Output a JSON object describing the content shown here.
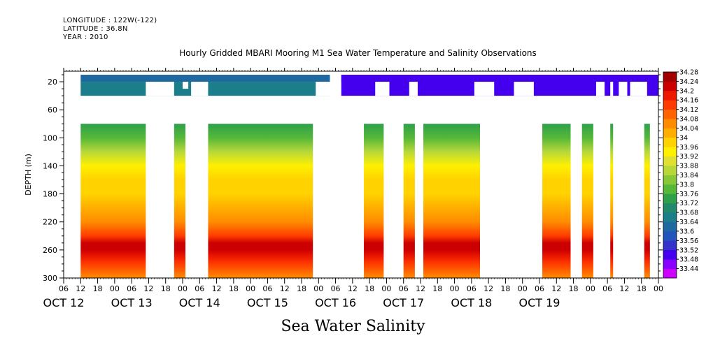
{
  "header": {
    "longitude": "LONGITUDE : 122W(-122)",
    "latitude": "LATITUDE : 36.8N",
    "year": "YEAR : 2010"
  },
  "chart_data": {
    "type": "heatmap",
    "title": "Hourly Gridded MBARI Mooring M1 Sea Water Temperature and Salinity Observations",
    "subtitle": "Sea Water Salinity",
    "ylabel": "DEPTH (m)",
    "xlabel": "",
    "ylim": [
      300,
      0
    ],
    "y_ticks": [
      20,
      60,
      100,
      140,
      180,
      220,
      260,
      300
    ],
    "x_range_hours": [
      0,
      210
    ],
    "x_hour_labels": [
      "06",
      "12",
      "18",
      "00",
      "06",
      "12",
      "18",
      "00",
      "06",
      "12",
      "18",
      "00",
      "06",
      "12",
      "18",
      "00",
      "06",
      "12",
      "18",
      "00",
      "06",
      "12",
      "18",
      "00",
      "06",
      "12",
      "18",
      "00",
      "06",
      "12",
      "18",
      "00",
      "06",
      "12",
      "18",
      "00"
    ],
    "x_day_labels": [
      "OCT 12",
      "OCT 13",
      "OCT 14",
      "OCT 15",
      "OCT 16",
      "OCT 17",
      "OCT 18",
      "OCT 19"
    ],
    "colorbar_levels": [
      33.44,
      33.48,
      33.52,
      33.56,
      33.6,
      33.64,
      33.68,
      33.72,
      33.76,
      33.8,
      33.84,
      33.88,
      33.92,
      33.96,
      34,
      34.04,
      34.08,
      34.12,
      34.16,
      34.2,
      34.24,
      34.28
    ],
    "colorbar_labels": [
      "34.28",
      "34.24",
      "34.2",
      "34.16",
      "34.12",
      "34.08",
      "34.04",
      "34",
      "33.96",
      "33.92",
      "33.88",
      "33.84",
      "33.8",
      "33.76",
      "33.72",
      "33.68",
      "33.64",
      "33.6",
      "33.56",
      "33.52",
      "33.48",
      "33.44"
    ],
    "colorbar_colors": [
      "#cc00ff",
      "#8800ff",
      "#4400ee",
      "#3333cc",
      "#2255bb",
      "#1e6aa0",
      "#1b7e8a",
      "#228a6a",
      "#2ea04a",
      "#55b838",
      "#88c838",
      "#b8d83a",
      "#e0e030",
      "#fff000",
      "#ffd200",
      "#ffae00",
      "#ff8c00",
      "#ff6400",
      "#ff3c00",
      "#ee1a00",
      "#cc0000",
      "#a00000"
    ],
    "shallow_data": [
      {
        "hours": [
          6,
          94
        ],
        "depth": [
          10,
          20
        ],
        "value": 33.64
      },
      {
        "hours": [
          6,
          94
        ],
        "depth": [
          20,
          40
        ],
        "value": 33.68
      },
      {
        "hours": [
          98,
          210
        ],
        "depth": [
          10,
          40
        ],
        "value": 33.53
      }
    ],
    "deep_profile": {
      "depths": [
        80,
        100,
        120,
        140,
        160,
        180,
        200,
        220,
        240,
        250,
        260,
        270,
        280,
        300
      ],
      "values": [
        33.78,
        33.82,
        33.9,
        33.98,
        34.02,
        34.03,
        34.05,
        34.1,
        34.18,
        34.24,
        34.26,
        34.22,
        34.16,
        34.08
      ]
    },
    "deep_data_hour_ranges": [
      [
        6,
        29
      ],
      [
        39,
        43
      ],
      [
        51,
        88
      ],
      [
        106,
        113
      ],
      [
        120,
        124
      ],
      [
        127,
        147
      ],
      [
        169,
        179
      ],
      [
        183,
        187
      ],
      [
        193,
        194
      ],
      [
        205,
        207
      ]
    ],
    "missing_data": [
      {
        "hours": [
          29,
          39
        ],
        "depth": [
          20,
          40
        ]
      },
      {
        "hours": [
          42,
          44
        ],
        "depth": [
          20,
          30
        ]
      },
      {
        "hours": [
          45,
          51
        ],
        "depth": [
          20,
          40
        ]
      },
      {
        "hours": [
          89,
          98
        ],
        "depth": [
          20,
          40
        ]
      },
      {
        "hours": [
          110,
          115
        ],
        "depth": [
          20,
          40
        ]
      },
      {
        "hours": [
          122,
          125
        ],
        "depth": [
          20,
          40
        ]
      },
      {
        "hours": [
          145,
          152
        ],
        "depth": [
          20,
          40
        ]
      },
      {
        "hours": [
          159,
          166
        ],
        "depth": [
          20,
          40
        ]
      },
      {
        "hours": [
          188,
          191
        ],
        "depth": [
          20,
          40
        ]
      },
      {
        "hours": [
          193,
          194
        ],
        "depth": [
          20,
          40
        ]
      },
      {
        "hours": [
          196,
          199
        ],
        "depth": [
          20,
          40
        ]
      },
      {
        "hours": [
          200,
          206
        ],
        "depth": [
          20,
          40
        ]
      }
    ]
  }
}
